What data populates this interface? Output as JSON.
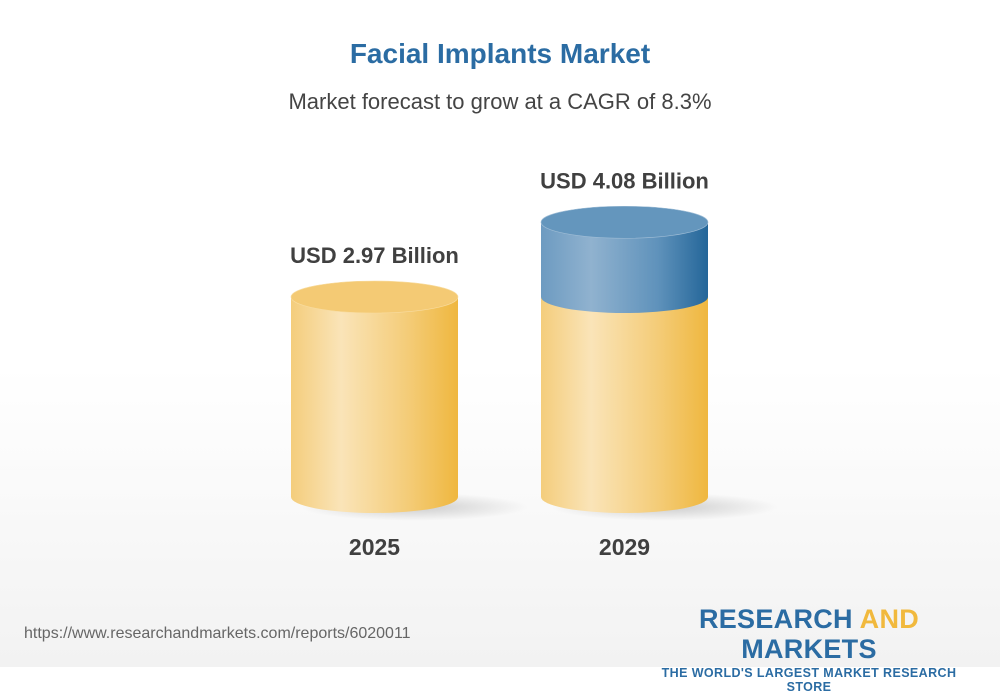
{
  "title": "Facial Implants Market",
  "subtitle": "Market forecast to grow at a CAGR of 8.3%",
  "chart_data": {
    "type": "bar",
    "style": "3d-cylinder",
    "categories": [
      "2025",
      "2029"
    ],
    "values": [
      2.97,
      4.08
    ],
    "data_labels": [
      "USD 2.97 Billion",
      "USD 4.08 Billion"
    ],
    "unit": "USD Billion",
    "cagr": "8.3%",
    "colors": {
      "base": "#f2c160",
      "growth": "#3a78a8"
    }
  },
  "footer": {
    "url": "https://www.researchandmarkets.com/reports/6020011",
    "logo_line1_a": "RESEARCH ",
    "logo_line1_b": "AND",
    "logo_line1_c": " MARKETS",
    "logo_line2": "THE WORLD'S LARGEST MARKET RESEARCH STORE"
  }
}
